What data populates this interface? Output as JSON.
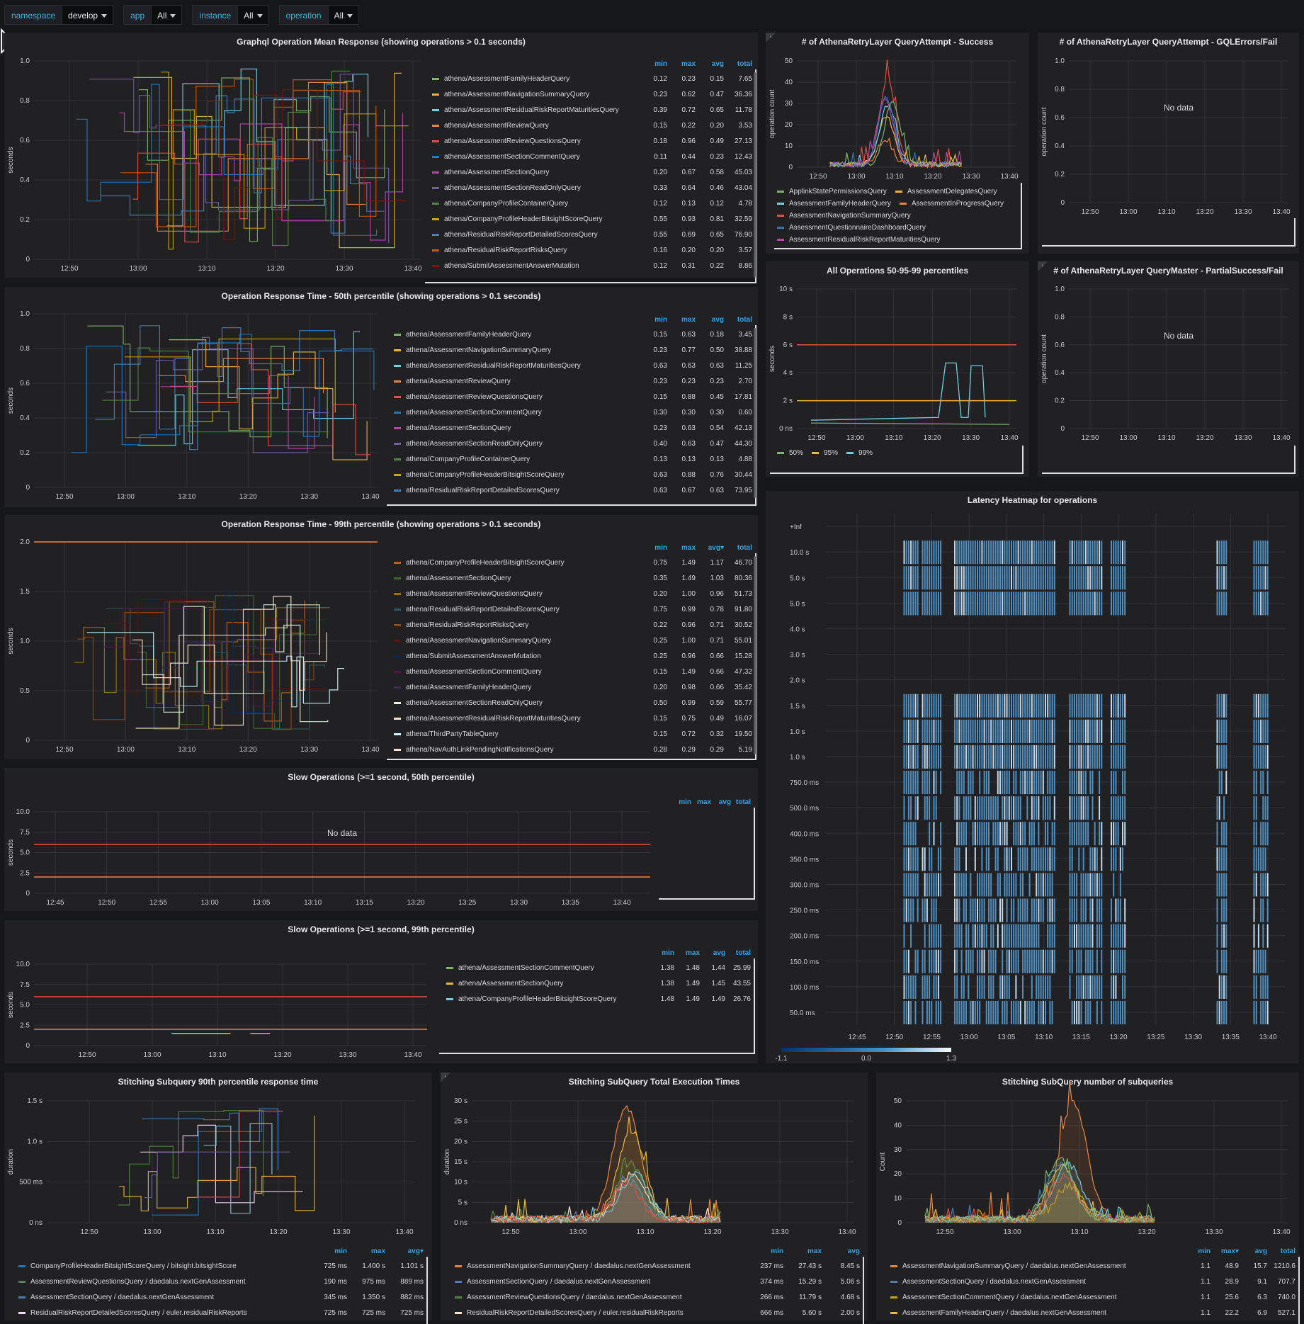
{
  "variables": [
    {
      "label": "namespace",
      "value": "develop"
    },
    {
      "label": "app",
      "value": "All"
    },
    {
      "label": "instance",
      "value": "All"
    },
    {
      "label": "operation",
      "value": "All"
    }
  ],
  "legend_headers": {
    "min": "min",
    "max": "max",
    "avg": "avg",
    "avg_sorted": "avg▾",
    "max_sorted": "max▾",
    "total": "total"
  },
  "panels": {
    "mean": {
      "title": "Graphql Operation Mean Response (showing operations > 0.1 seconds)",
      "ylabel": "seconds",
      "yticks": [
        "1.0",
        "0.8",
        "0.6",
        "0.4",
        "0.2",
        "0"
      ],
      "xticks": [
        "12:50",
        "13:00",
        "13:10",
        "13:20",
        "13:30",
        "13:40"
      ],
      "rows": [
        {
          "name": "athena/AssessmentFamilyHeaderQuery",
          "color": "#7eb26d",
          "min": "0.12",
          "max": "0.23",
          "avg": "0.15",
          "total": "7.65"
        },
        {
          "name": "athena/AssessmentNavigationSummaryQuery",
          "color": "#eab839",
          "min": "0.23",
          "max": "0.62",
          "avg": "0.47",
          "total": "36.36"
        },
        {
          "name": "athena/AssessmentResidualRiskReportMaturitiesQuery",
          "color": "#6ed0e0",
          "min": "0.39",
          "max": "0.72",
          "avg": "0.65",
          "total": "11.78"
        },
        {
          "name": "athena/AssessmentReviewQuery",
          "color": "#ef843c",
          "min": "0.15",
          "max": "0.22",
          "avg": "0.20",
          "total": "3.53"
        },
        {
          "name": "athena/AssessmentReviewQuestionsQuery",
          "color": "#e24d42",
          "min": "0.18",
          "max": "0.96",
          "avg": "0.49",
          "total": "27.13"
        },
        {
          "name": "athena/AssessmentSectionCommentQuery",
          "color": "#1f78c1",
          "min": "0.11",
          "max": "0.44",
          "avg": "0.23",
          "total": "12.43"
        },
        {
          "name": "athena/AssessmentSectionQuery",
          "color": "#ba43a9",
          "min": "0.20",
          "max": "0.67",
          "avg": "0.58",
          "total": "45.03"
        },
        {
          "name": "athena/AssessmentSectionReadOnlyQuery",
          "color": "#705da0",
          "min": "0.33",
          "max": "0.64",
          "avg": "0.46",
          "total": "43.04"
        },
        {
          "name": "athena/CompanyProfileContainerQuery",
          "color": "#508642",
          "min": "0.12",
          "max": "0.13",
          "avg": "0.12",
          "total": "4.78"
        },
        {
          "name": "athena/CompanyProfileHeaderBitsightScoreQuery",
          "color": "#cca300",
          "min": "0.55",
          "max": "0.93",
          "avg": "0.81",
          "total": "32.59"
        },
        {
          "name": "athena/ResidualRiskReportDetailedScoresQuery",
          "color": "#447ebc",
          "min": "0.55",
          "max": "0.69",
          "avg": "0.65",
          "total": "76.90"
        },
        {
          "name": "athena/ResidualRiskReportRisksQuery",
          "color": "#c15c17",
          "min": "0.16",
          "max": "0.20",
          "avg": "0.20",
          "total": "3.57"
        },
        {
          "name": "athena/SubmitAssessmentAnswerMutation",
          "color": "#890f02",
          "min": "0.12",
          "max": "0.31",
          "avg": "0.22",
          "total": "8.86"
        }
      ]
    },
    "p50": {
      "title": "Operation Response Time - 50th percentile (showing operations > 0.1 seconds)",
      "ylabel": "seconds",
      "yticks": [
        "1.0",
        "0.8",
        "0.6",
        "0.4",
        "0.2",
        "0"
      ],
      "xticks": [
        "12:50",
        "13:00",
        "13:10",
        "13:20",
        "13:30",
        "13:40"
      ],
      "rows": [
        {
          "name": "athena/AssessmentFamilyHeaderQuery",
          "color": "#7eb26d",
          "min": "0.15",
          "max": "0.63",
          "avg": "0.18",
          "total": "3.45"
        },
        {
          "name": "athena/AssessmentNavigationSummaryQuery",
          "color": "#eab839",
          "min": "0.23",
          "max": "0.77",
          "avg": "0.50",
          "total": "38.88"
        },
        {
          "name": "athena/AssessmentResidualRiskReportMaturitiesQuery",
          "color": "#6ed0e0",
          "min": "0.63",
          "max": "0.63",
          "avg": "0.63",
          "total": "11.25"
        },
        {
          "name": "athena/AssessmentReviewQuery",
          "color": "#ef843c",
          "min": "0.23",
          "max": "0.23",
          "avg": "0.23",
          "total": "2.70"
        },
        {
          "name": "athena/AssessmentReviewQuestionsQuery",
          "color": "#e24d42",
          "min": "0.15",
          "max": "0.88",
          "avg": "0.45",
          "total": "17.81"
        },
        {
          "name": "athena/AssessmentSectionCommentQuery",
          "color": "#1f78c1",
          "min": "0.30",
          "max": "0.30",
          "avg": "0.30",
          "total": "0.60"
        },
        {
          "name": "athena/AssessmentSectionQuery",
          "color": "#ba43a9",
          "min": "0.23",
          "max": "0.63",
          "avg": "0.54",
          "total": "42.13"
        },
        {
          "name": "athena/AssessmentSectionReadOnlyQuery",
          "color": "#705da0",
          "min": "0.40",
          "max": "0.63",
          "avg": "0.47",
          "total": "44.30"
        },
        {
          "name": "athena/CompanyProfileContainerQuery",
          "color": "#508642",
          "min": "0.13",
          "max": "0.13",
          "avg": "0.13",
          "total": "4.88"
        },
        {
          "name": "athena/CompanyProfileHeaderBitsightScoreQuery",
          "color": "#cca300",
          "min": "0.63",
          "max": "0.88",
          "avg": "0.76",
          "total": "30.44"
        },
        {
          "name": "athena/ResidualRiskReportDetailedScoresQuery",
          "color": "#447ebc",
          "min": "0.63",
          "max": "0.67",
          "avg": "0.63",
          "total": "73.95"
        }
      ]
    },
    "p99": {
      "title": "Operation Response Time - 99th percentile (showing operations > 0.1 seconds)",
      "ylabel": "seconds",
      "yticks": [
        "2.0",
        "1.5",
        "1.0",
        "0.5",
        "0"
      ],
      "xticks": [
        "12:50",
        "13:00",
        "13:10",
        "13:20",
        "13:30",
        "13:40"
      ],
      "rows": [
        {
          "name": "athena/CompanyProfileHeaderBitsightScoreQuery",
          "color": "#c15c17",
          "min": "0.75",
          "max": "1.49",
          "avg": "1.17",
          "total": "46.70"
        },
        {
          "name": "athena/AssessmentSectionQuery",
          "color": "#3f6833",
          "min": "0.35",
          "max": "1.49",
          "avg": "1.03",
          "total": "80.36"
        },
        {
          "name": "athena/AssessmentReviewQuestionsQuery",
          "color": "#967302",
          "min": "0.20",
          "max": "1.00",
          "avg": "0.96",
          "total": "51.73"
        },
        {
          "name": "athena/ResidualRiskReportDetailedScoresQuery",
          "color": "#2f575e",
          "min": "0.75",
          "max": "0.99",
          "avg": "0.78",
          "total": "91.80"
        },
        {
          "name": "athena/ResidualRiskReportRisksQuery",
          "color": "#99440a",
          "min": "0.22",
          "max": "0.96",
          "avg": "0.71",
          "total": "30.52"
        },
        {
          "name": "athena/AssessmentNavigationSummaryQuery",
          "color": "#58140c",
          "min": "0.25",
          "max": "1.00",
          "avg": "0.71",
          "total": "55.01"
        },
        {
          "name": "athena/SubmitAssessmentAnswerMutation",
          "color": "#052b51",
          "min": "0.25",
          "max": "0.96",
          "avg": "0.66",
          "total": "15.28"
        },
        {
          "name": "athena/AssessmentSectionCommentQuery",
          "color": "#511749",
          "min": "0.15",
          "max": "1.49",
          "avg": "0.66",
          "total": "47.32"
        },
        {
          "name": "athena/AssessmentFamilyHeaderQuery",
          "color": "#3f2b5b",
          "min": "0.20",
          "max": "0.98",
          "avg": "0.66",
          "total": "35.42"
        },
        {
          "name": "athena/AssessmentSectionReadOnlyQuery",
          "color": "#e0f9d7",
          "min": "0.50",
          "max": "0.99",
          "avg": "0.59",
          "total": "55.77"
        },
        {
          "name": "athena/AssessmentResidualRiskReportMaturitiesQuery",
          "color": "#fceaca",
          "min": "0.15",
          "max": "0.75",
          "avg": "0.49",
          "total": "16.07"
        },
        {
          "name": "athena/ThirdPartyTableQuery",
          "color": "#cffaff",
          "min": "0.15",
          "max": "0.72",
          "avg": "0.32",
          "total": "19.50"
        },
        {
          "name": "athena/NavAuthLinkPendingNotificationsQuery",
          "color": "#f9e2d2",
          "min": "0.28",
          "max": "0.29",
          "avg": "0.29",
          "total": "5.19"
        }
      ]
    },
    "slow50": {
      "title": "Slow Operations (>=1 second, 50th percentile)",
      "ylabel": "seconds",
      "nodata": "No data",
      "yticks": [
        "10.0",
        "7.5",
        "5.0",
        "2.5",
        "0"
      ],
      "xticks": [
        "12:45",
        "12:50",
        "12:55",
        "13:00",
        "13:05",
        "13:10",
        "13:15",
        "13:20",
        "13:25",
        "13:30",
        "13:35",
        "13:40"
      ]
    },
    "slow99": {
      "title": "Slow Operations (>=1 second, 99th percentile)",
      "ylabel": "seconds",
      "yticks": [
        "10.0",
        "7.5",
        "5.0",
        "2.5",
        "0"
      ],
      "xticks": [
        "12:50",
        "13:00",
        "13:10",
        "13:20",
        "13:30",
        "13:40"
      ],
      "rows": [
        {
          "name": "athena/AssessmentSectionCommentQuery",
          "color": "#7eb26d",
          "min": "1.38",
          "max": "1.48",
          "avg": "1.44",
          "total": "25.99"
        },
        {
          "name": "athena/AssessmentSectionQuery",
          "color": "#eab839",
          "min": "1.38",
          "max": "1.49",
          "avg": "1.45",
          "total": "43.55"
        },
        {
          "name": "athena/CompanyProfileHeaderBitsightScoreQuery",
          "color": "#6ed0e0",
          "min": "1.48",
          "max": "1.49",
          "avg": "1.49",
          "total": "26.76"
        }
      ]
    },
    "retry_success": {
      "title": "# of AthenaRetryLayer QueryAttempt - Success",
      "info": "i",
      "ylabel": "operation count",
      "yticks": [
        "50",
        "40",
        "30",
        "20",
        "10",
        "0"
      ],
      "xticks": [
        "12:50",
        "13:00",
        "13:10",
        "13:20",
        "13:30",
        "13:40"
      ],
      "legend": [
        {
          "name": "ApplinkStatePermissionsQuery",
          "color": "#7eb26d"
        },
        {
          "name": "AssessmentDelegatesQuery",
          "color": "#eab839"
        },
        {
          "name": "AssessmentFamilyHeaderQuery",
          "color": "#6ed0e0"
        },
        {
          "name": "AssessmentInProgressQuery",
          "color": "#ef843c"
        },
        {
          "name": "AssessmentNavigationSummaryQuery",
          "color": "#e24d42"
        },
        {
          "name": "AssessmentQuestionnaireDashboardQuery",
          "color": "#1f78c1"
        },
        {
          "name": "AssessmentResidualRiskReportMaturitiesQuery",
          "color": "#ba43a9"
        }
      ]
    },
    "retry_errors": {
      "title": "# of AthenaRetryLayer QueryAttempt - GQLErrors/Fail",
      "ylabel": "operation count",
      "nodata": "No data",
      "yticks": [
        "1.0",
        "0.8",
        "0.6",
        "0.4",
        "0.2",
        "0"
      ],
      "xticks": [
        "12:50",
        "13:00",
        "13:10",
        "13:20",
        "13:30",
        "13:40"
      ]
    },
    "percentiles": {
      "title": "All Operations 50-95-99 percentiles",
      "ylabel": "seconds",
      "yticks": [
        "10 s",
        "8 s",
        "6 s",
        "4 s",
        "2 s",
        "0 ns"
      ],
      "xticks": [
        "12:50",
        "13:00",
        "13:10",
        "13:20",
        "13:30",
        "13:40"
      ],
      "legend": [
        {
          "name": "50%",
          "color": "#7eb26d"
        },
        {
          "name": "95%",
          "color": "#eab839"
        },
        {
          "name": "99%",
          "color": "#6ed0e0"
        }
      ]
    },
    "retry_master": {
      "title": "# of AthenaRetryLayer QueryMaster - PartialSuccess/Fail",
      "info": "i",
      "ylabel": "operation count",
      "nodata": "No data",
      "yticks": [
        "1.0",
        "0.8",
        "0.6",
        "0.4",
        "0.2",
        "0"
      ],
      "xticks": [
        "12:50",
        "13:00",
        "13:10",
        "13:20",
        "13:30",
        "13:40"
      ]
    },
    "heatmap": {
      "title": "Latency Heatmap for operations",
      "yticks": [
        "+Inf",
        "10.0 s",
        "5.0 s",
        "5.0 s",
        "4.0 s",
        "3.0 s",
        "2.0 s",
        "1.5 s",
        "1.0 s",
        "1.0 s",
        "750.0 ms",
        "500.0 ms",
        "400.0 ms",
        "350.0 ms",
        "300.0 ms",
        "250.0 ms",
        "200.0 ms",
        "150.0 ms",
        "100.0 ms",
        "50.0 ms"
      ],
      "xticks": [
        "12:45",
        "12:50",
        "12:55",
        "13:00",
        "13:05",
        "13:10",
        "13:15",
        "13:20",
        "13:25",
        "13:30",
        "13:35",
        "13:40"
      ],
      "scale": [
        "-1.1",
        "0.0",
        "1.3"
      ]
    },
    "stitch90": {
      "title": "Stitching Subquery 90th percentile response time",
      "ylabel": "duration",
      "yticks": [
        "1.5 s",
        "1.0 s",
        "500 ms",
        "0 ns"
      ],
      "xticks": [
        "12:50",
        "13:00",
        "13:10",
        "13:20",
        "13:30",
        "13:40"
      ],
      "rows": [
        {
          "name": "CompanyProfileHeaderBitsightScoreQuery / bitsight.bitsightScore",
          "color": "#1f78c1",
          "min": "725 ms",
          "max": "1.400 s",
          "avg": "1.101 s"
        },
        {
          "name": "AssessmentReviewQuestionsQuery / daedalus.nextGenAssessment",
          "color": "#508642",
          "min": "190 ms",
          "max": "975 ms",
          "avg": "889 ms"
        },
        {
          "name": "AssessmentSectionQuery / daedalus.nextGenAssessment",
          "color": "#447ebc",
          "min": "345 ms",
          "max": "1.350 s",
          "avg": "882 ms"
        },
        {
          "name": "ResidualRiskReportDetailedScoresQuery / euler.residualRiskReports",
          "color": "#f9d9f9",
          "min": "725 ms",
          "max": "725 ms",
          "avg": "725 ms"
        }
      ]
    },
    "stitch_total": {
      "title": "Stitching SubQuery Total Execution Times",
      "info": "i",
      "ylabel": "duration",
      "yticks": [
        "30 s",
        "25 s",
        "20 s",
        "15 s",
        "10 s",
        "5 s",
        "0 ns"
      ],
      "xticks": [
        "12:50",
        "13:00",
        "13:10",
        "13:20",
        "13:30",
        "13:40"
      ],
      "rows": [
        {
          "name": "AssessmentNavigationSummaryQuery / daedalus.nextGenAssessment",
          "color": "#ef843c",
          "min": "237 ms",
          "max": "27.43 s",
          "avg": "8.45 s"
        },
        {
          "name": "AssessmentSectionQuery / daedalus.nextGenAssessment",
          "color": "#447ebc",
          "min": "374 ms",
          "max": "15.29 s",
          "avg": "5.06 s"
        },
        {
          "name": "AssessmentReviewQuestionsQuery / daedalus.nextGenAssessment",
          "color": "#508642",
          "min": "266 ms",
          "max": "11.79 s",
          "avg": "4.68 s"
        },
        {
          "name": "ResidualRiskReportDetailedScoresQuery / euler.residualRiskReports",
          "color": "#f9e2d2",
          "min": "666 ms",
          "max": "5.60 s",
          "avg": "2.00 s"
        }
      ]
    },
    "stitch_count": {
      "title": "Stitching SubQuery number of subqueries",
      "ylabel": "Count",
      "yticks": [
        "50",
        "40",
        "30",
        "20",
        "10",
        "0"
      ],
      "xticks": [
        "12:50",
        "13:00",
        "13:10",
        "13:20",
        "13:30",
        "13:40"
      ],
      "rows": [
        {
          "name": "AssessmentNavigationSummaryQuery / daedalus.nextGenAssessment",
          "color": "#ef843c",
          "min": "1.1",
          "max": "48.9",
          "avg": "15.7",
          "total": "1210.6"
        },
        {
          "name": "AssessmentSectionQuery / daedalus.nextGenAssessment",
          "color": "#447ebc",
          "min": "1.1",
          "max": "28.9",
          "avg": "9.1",
          "total": "707.7"
        },
        {
          "name": "AssessmentSectionCommentQuery / daedalus.nextGenAssessment",
          "color": "#cca300",
          "min": "1.1",
          "max": "25.6",
          "avg": "6.3",
          "total": "740.0"
        },
        {
          "name": "AssessmentFamilyHeaderQuery / daedalus.nextGenAssessment",
          "color": "#eab839",
          "min": "1.1",
          "max": "22.2",
          "avg": "6.9",
          "total": "527.1"
        }
      ]
    }
  }
}
